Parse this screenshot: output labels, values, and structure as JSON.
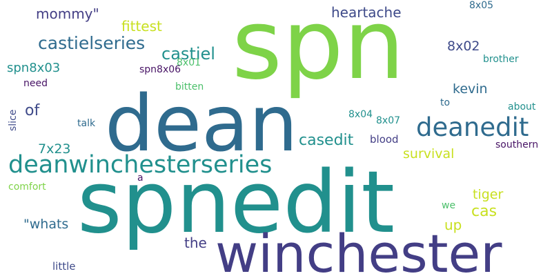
{
  "words": {
    "spn": "spn",
    "spnedit": "spnedit",
    "dean": "dean",
    "winchester": "winchester",
    "deanwinchesterseries": "deanwinchesterseries",
    "deanedit": "deanedit",
    "castielseries": "castielseries",
    "castiel": "castiel",
    "casedit": "casedit",
    "heartache": "heartache",
    "fittest": "fittest",
    "mommy": "mommy\"",
    "x8x02": "8x02",
    "spn8x03": "spn8x03",
    "kevin": "kevin",
    "of": "of",
    "survival": "survival",
    "x7x23": "7x23",
    "tiger": "tiger",
    "cas": "cas",
    "up": "up",
    "whats": "\"whats",
    "the": "the",
    "little": "little",
    "x8x05": "8x05",
    "brother": "brother",
    "x8x01": "8x01",
    "spn8x06": "spn8x06",
    "need": "need",
    "bitten": "bitten",
    "to": "to",
    "about": "about",
    "x8x04": "8x04",
    "x8x07": "8x07",
    "talk": "talk",
    "blood": "blood",
    "southern": "southern",
    "slice": "slice",
    "a": "a",
    "comfort": "comfort",
    "we": "we"
  },
  "colors": {
    "lime": "#7ed348",
    "teal": "#21908d",
    "blue": "#2f6b8e",
    "navy": "#433e85",
    "dark_purple": "#471365",
    "yellow_green": "#c8e020",
    "green": "#4bbf6a",
    "slate": "#3e4a89"
  }
}
